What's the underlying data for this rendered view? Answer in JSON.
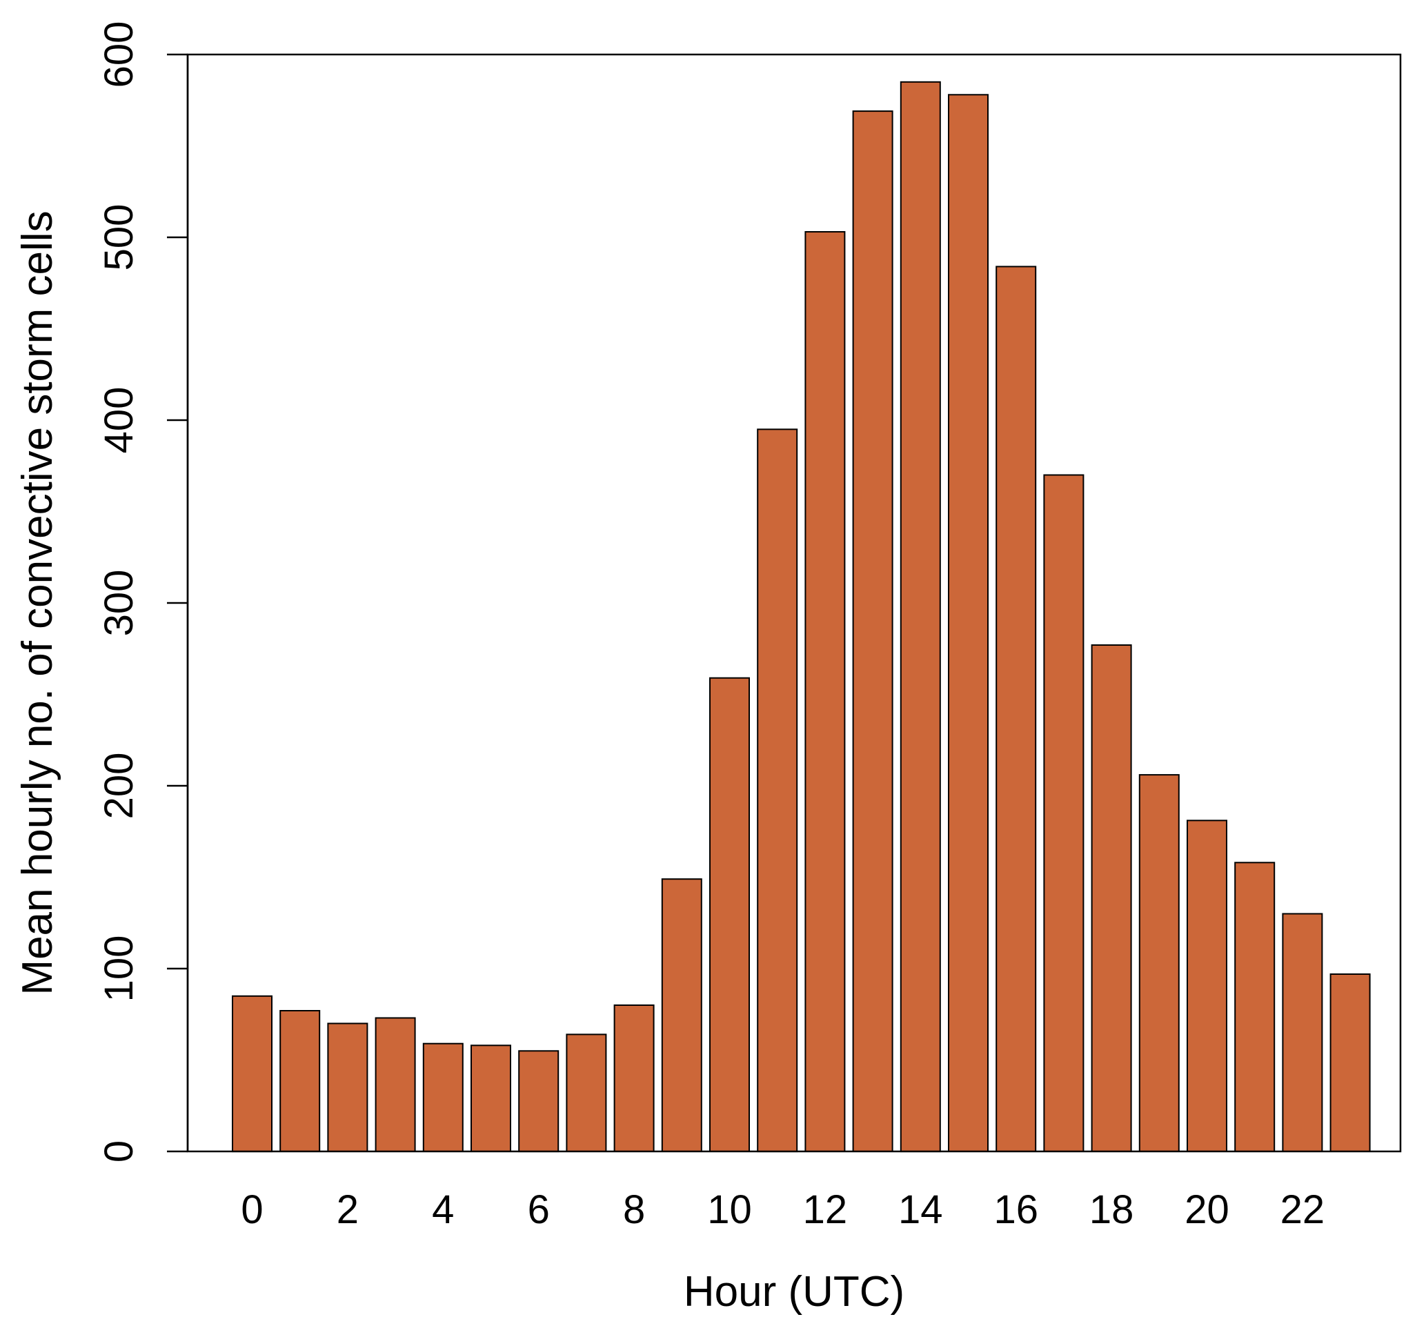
{
  "chart_data": {
    "type": "bar",
    "title": "",
    "xlabel": "Hour (UTC)",
    "ylabel": "Mean hourly no. of convective storm cells",
    "categories": [
      "0",
      "1",
      "2",
      "3",
      "4",
      "5",
      "6",
      "7",
      "8",
      "9",
      "10",
      "11",
      "12",
      "13",
      "14",
      "15",
      "16",
      "17",
      "18",
      "19",
      "20",
      "21",
      "22",
      "23"
    ],
    "values": [
      85,
      77,
      70,
      73,
      59,
      58,
      55,
      64,
      80,
      149,
      259,
      395,
      503,
      569,
      585,
      578,
      484,
      370,
      277,
      206,
      181,
      158,
      130,
      97
    ],
    "x_tick_labels": [
      "0",
      "2",
      "4",
      "6",
      "8",
      "10",
      "12",
      "14",
      "16",
      "18",
      "20",
      "22"
    ],
    "y_ticks": [
      0,
      100,
      200,
      300,
      400,
      500,
      600
    ],
    "y_tick_labels": [
      "0",
      "100",
      "200",
      "300",
      "400",
      "500",
      "600"
    ],
    "ylim": [
      0,
      600
    ],
    "grid": false,
    "legend": "none",
    "bar_color": "#CC6739",
    "bar_edge_color": "#000000"
  }
}
